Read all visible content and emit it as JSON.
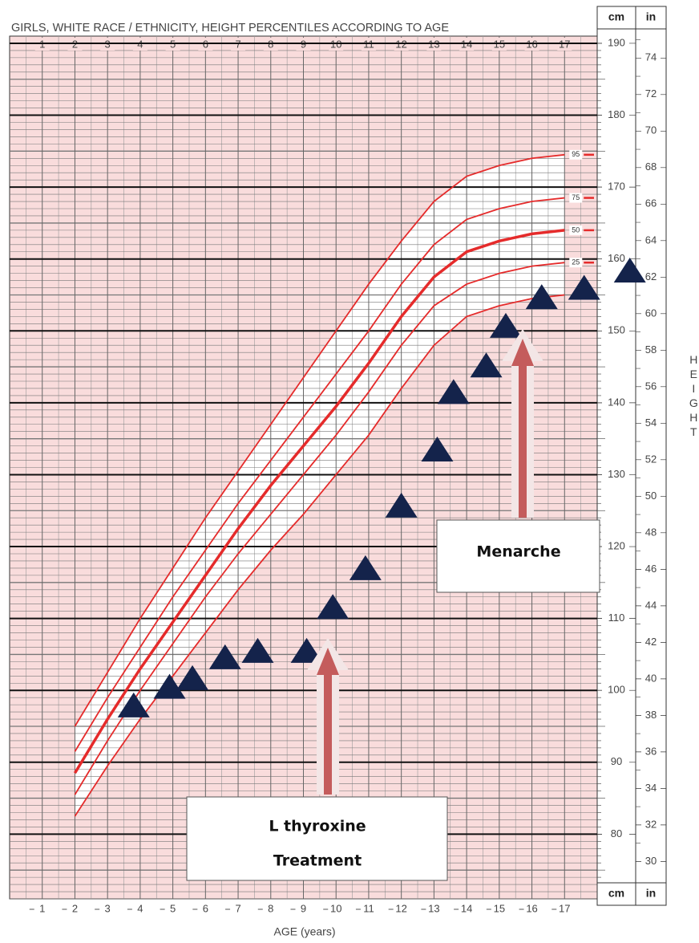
{
  "chart_data": {
    "type": "line",
    "title": "GIRLS, WHITE RACE / ETHNICITY, HEIGHT PERCENTILES ACCORDING TO AGE",
    "x_label": "AGE (years)",
    "y_label": "HEIGHT",
    "y_unit": "cm",
    "y2_unit": "in",
    "xlim": [
      0,
      18
    ],
    "xticks": [
      1,
      2,
      3,
      4,
      5,
      6,
      7,
      8,
      9,
      10,
      11,
      12,
      13,
      14,
      15,
      16,
      17
    ],
    "ylim": [
      71,
      191
    ],
    "yticks": [
      80,
      90,
      100,
      110,
      120,
      130,
      140,
      150,
      160,
      170,
      180,
      190
    ],
    "y2lim": [
      27.95,
      75.2
    ],
    "y2ticks": [
      30,
      32,
      34,
      36,
      38,
      40,
      42,
      44,
      46,
      48,
      50,
      52,
      54,
      56,
      58,
      60,
      62,
      64,
      66,
      68,
      70,
      72,
      74
    ],
    "grid": true,
    "x": [
      2,
      3,
      4,
      5,
      6,
      7,
      8,
      9,
      10,
      11,
      12,
      13,
      14,
      15,
      16,
      17
    ],
    "series": [
      {
        "color": "#e52b2b",
        "values": [
          82.5,
          89.5,
          96,
          102,
          108,
          114,
          119.5,
          124.5,
          130,
          135.5,
          142,
          148,
          152,
          153.5,
          154.5,
          155
        ]
      },
      {
        "name": "25",
        "color": "#e52b2b",
        "values": [
          85.5,
          93,
          100,
          106.5,
          113,
          119,
          124.5,
          130,
          135.5,
          141.5,
          148,
          153.5,
          156.5,
          158,
          159,
          159.5
        ]
      },
      {
        "name": "50",
        "color": "#e52b2b",
        "values": [
          88.5,
          96,
          103,
          109.5,
          116,
          122.5,
          128.5,
          134,
          139.5,
          145.5,
          152,
          157.5,
          161,
          162.5,
          163.5,
          164
        ]
      },
      {
        "name": "75",
        "color": "#e52b2b",
        "values": [
          91.5,
          99,
          106,
          113,
          119.5,
          126,
          132,
          138,
          144,
          150,
          156.5,
          162,
          165.5,
          167,
          168,
          168.5
        ]
      },
      {
        "name": "95",
        "color": "#e52b2b",
        "values": [
          95,
          102.5,
          110,
          117,
          124,
          130.5,
          137,
          143.5,
          150,
          156.5,
          162.5,
          168,
          171.5,
          173,
          174,
          174.5
        ]
      }
    ],
    "points": {
      "color": "#14234b",
      "x": [
        3.8,
        4.9,
        5.6,
        6.6,
        7.6,
        9.1,
        9.9,
        10.9,
        12.0,
        13.1,
        13.6,
        14.6,
        15.2,
        16.3,
        17.6,
        19.0
      ],
      "y": [
        97.8,
        100.4,
        101.6,
        104.5,
        105.4,
        105.4,
        111.5,
        116.9,
        125.6,
        133.4,
        141.4,
        145.1,
        150.6,
        154.6,
        155.9,
        158.3
      ]
    },
    "annotations": [
      {
        "text": "Menarche"
      },
      {
        "text": [
          "L thyroxine",
          "Treatment"
        ]
      }
    ]
  }
}
